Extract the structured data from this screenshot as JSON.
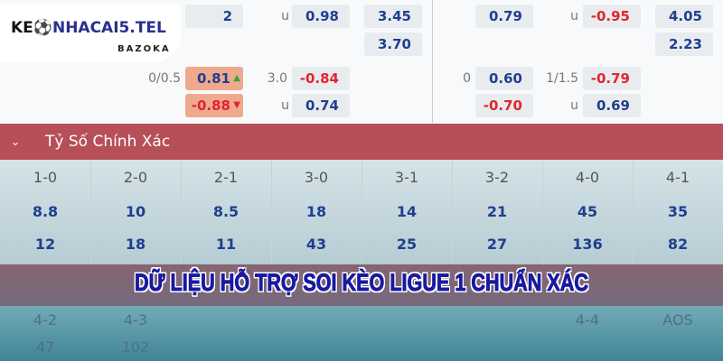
{
  "odds": {
    "left": {
      "r1_a": "2",
      "r1_lbl": "u",
      "r1_b": "0.98",
      "r1_c": "3.45",
      "r2_c": "3.70",
      "r3_lbl1": "0/0.5",
      "r3_a": "0.81",
      "r3_lbl2": "3.0",
      "r3_b": "-0.84",
      "r4_a": "-0.88",
      "r4_lbl": "u",
      "r4_b": "0.74"
    },
    "right": {
      "r1_a": "0.79",
      "r1_lbl": "u",
      "r1_b": "-0.95",
      "r1_c": "4.05",
      "r2_c": "2.23",
      "r3_lbl1": "0",
      "r3_a": "0.60",
      "r3_lbl2": "1/1.5",
      "r3_b": "-0.79",
      "r4_a": "-0.70",
      "r4_lbl": "u",
      "r4_b": "0.69"
    }
  },
  "logo": {
    "text_a": "KE",
    "text_b": "NHACAI5.TEL",
    "sub": "BAZOKA"
  },
  "section": {
    "title": "Tỷ Số Chính Xác"
  },
  "scores": [
    {
      "score": "1-0",
      "home": "8.8",
      "away": "12"
    },
    {
      "score": "2-0",
      "home": "10",
      "away": "18"
    },
    {
      "score": "2-1",
      "home": "8.5",
      "away": "11"
    },
    {
      "score": "3-0",
      "home": "18",
      "away": "43"
    },
    {
      "score": "3-1",
      "home": "14",
      "away": "25"
    },
    {
      "score": "3-2",
      "home": "21",
      "away": "27"
    },
    {
      "score": "4-0",
      "home": "45",
      "away": "136"
    },
    {
      "score": "4-1",
      "home": "35",
      "away": "82"
    }
  ],
  "scores2": {
    "c1": "4-2",
    "c2": "4-3",
    "c7": "4-4",
    "c8": "AOS",
    "v1": "47",
    "v2": "102"
  },
  "banner": "DỮ LIỆU HỖ TRỢ SOI KÈO LIGUE 1 CHUẨN XÁC",
  "colors": {
    "header": "#b74f58",
    "odds_blue": "#1f3f8f",
    "odds_red": "#e0262d",
    "highlight": "#efa98d"
  }
}
